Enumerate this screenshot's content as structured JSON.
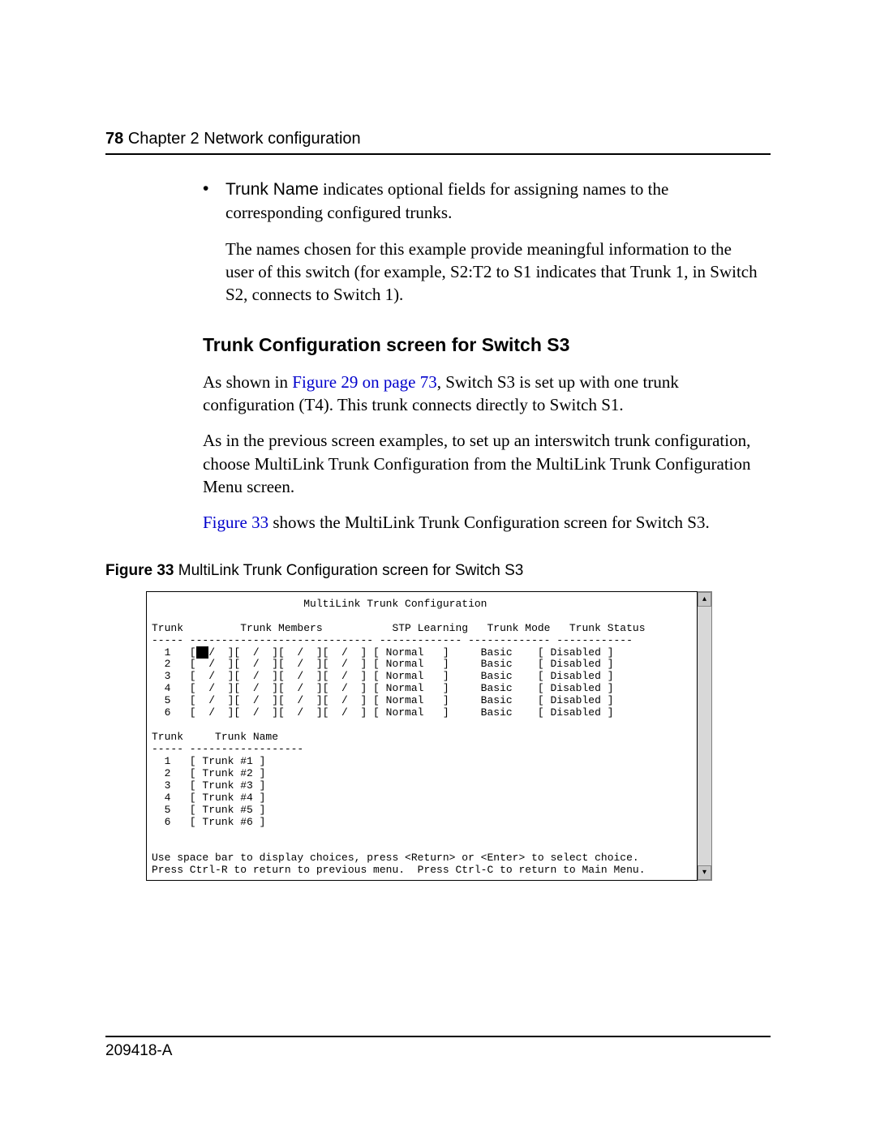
{
  "page": {
    "number": "78",
    "chapter": "Chapter 2  Network configuration",
    "footer_docnum": "209418-A"
  },
  "bullet": {
    "term": "Trunk Name",
    "text_after_term": " indicates optional fields for assigning names to the corresponding configured trunks."
  },
  "para_example": "The names chosen for this example provide meaningful information to the user of this switch (for example, S2:T2 to S1 indicates that Trunk 1, in Switch S2, connects to Switch 1).",
  "section_heading": "Trunk Configuration screen for Switch S3",
  "para_s3_1_pre": "As shown in ",
  "para_s3_1_link": "Figure 29 on page 73",
  "para_s3_1_post": ", Switch S3 is set up with one trunk configuration (T4). This trunk connects directly to Switch S1.",
  "para_s3_2": "As in the previous screen examples, to set up an interswitch trunk configuration, choose MultiLink Trunk Configuration from the MultiLink Trunk Configuration Menu screen.",
  "para_s3_3_link": "Figure 33",
  "para_s3_3_post": " shows the MultiLink Trunk Configuration screen for Switch S3.",
  "figcap": {
    "num": "Figure 33",
    "text": "   MultiLink Trunk Configuration screen for Switch S3"
  },
  "terminal": {
    "title": "                        MultiLink Trunk Configuration",
    "blank": "",
    "hdr": "Trunk         Trunk Members           STP Learning   Trunk Mode   Trunk Status",
    "rule": "----- ----------------------------- ------------- ------------- ------------",
    "row1a": "  1   [",
    "row1cur": "  ",
    "row1b": "/  ][  /  ][  /  ][  /  ] [ Normal   ]     Basic    [ Disabled ]",
    "row2": "  2   [  /  ][  /  ][  /  ][  /  ] [ Normal   ]     Basic    [ Disabled ]",
    "row3": "  3   [  /  ][  /  ][  /  ][  /  ] [ Normal   ]     Basic    [ Disabled ]",
    "row4": "  4   [  /  ][  /  ][  /  ][  /  ] [ Normal   ]     Basic    [ Disabled ]",
    "row5": "  5   [  /  ][  /  ][  /  ][  /  ] [ Normal   ]     Basic    [ Disabled ]",
    "row6": "  6   [  /  ][  /  ][  /  ][  /  ] [ Normal   ]     Basic    [ Disabled ]",
    "hdr2": "Trunk     Trunk Name",
    "rule2": "----- ------------------",
    "n1": "  1   [ Trunk #1 ]",
    "n2": "  2   [ Trunk #2 ]",
    "n3": "  3   [ Trunk #3 ]",
    "n4": "  4   [ Trunk #4 ]",
    "n5": "  5   [ Trunk #5 ]",
    "n6": "  6   [ Trunk #6 ]",
    "help1": "Use space bar to display choices, press <Return> or <Enter> to select choice.",
    "help2": "Press Ctrl-R to return to previous menu.  Press Ctrl-C to return to Main Menu."
  },
  "scrollbar": {
    "up": "▴",
    "down": "▾"
  }
}
